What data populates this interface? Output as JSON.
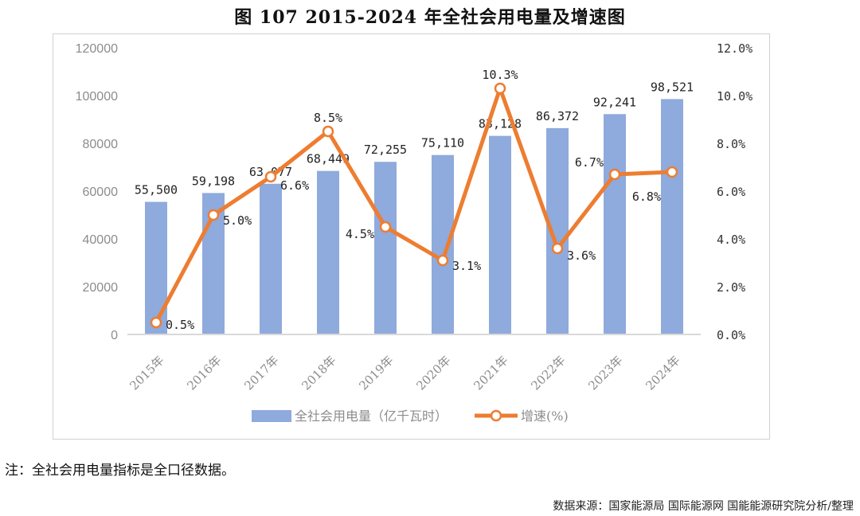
{
  "chart_data": {
    "type": "bar",
    "title": "图 107 2015-2024 年全社会用电量及增速图",
    "categories": [
      "2015年",
      "2016年",
      "2017年",
      "2018年",
      "2019年",
      "2020年",
      "2021年",
      "2022年",
      "2023年",
      "2024年"
    ],
    "series": [
      {
        "name": "全社会用电量（亿千瓦时）",
        "type": "bar",
        "axis": "left",
        "color": "#8faadc",
        "values": [
          55500,
          59198,
          63077,
          68449,
          72255,
          75110,
          83128,
          86372,
          92241,
          98521
        ],
        "labels": [
          "55,500",
          "59,198",
          "63,077",
          "68,449",
          "72,255",
          "75,110",
          "83,128",
          "86,372",
          "92,241",
          "98,521"
        ]
      },
      {
        "name": "增速(%)",
        "type": "line",
        "axis": "right",
        "color": "#ed7d31",
        "values": [
          0.5,
          5.0,
          6.6,
          8.5,
          4.5,
          3.1,
          10.3,
          3.6,
          6.7,
          6.8
        ],
        "labels": [
          "0.5%",
          "5.0%",
          "6.6%",
          "8.5%",
          "4.5%",
          "3.1%",
          "10.3%",
          "3.6%",
          "6.7%",
          "6.8%"
        ]
      }
    ],
    "ylim": [
      0,
      120000
    ],
    "yticks": [
      "0",
      "20000",
      "40000",
      "60000",
      "80000",
      "100000",
      "120000"
    ],
    "y2lim": [
      0,
      12
    ],
    "y2ticks": [
      "0.0%",
      "2.0%",
      "4.0%",
      "6.0%",
      "8.0%",
      "10.0%",
      "12.0%"
    ],
    "legend": "bottom",
    "grid": false
  },
  "note": "注：全社会用电量指标是全口径数据。",
  "source": "数据来源：国家能源局 国际能源网 国能能源研究院分析/整理"
}
